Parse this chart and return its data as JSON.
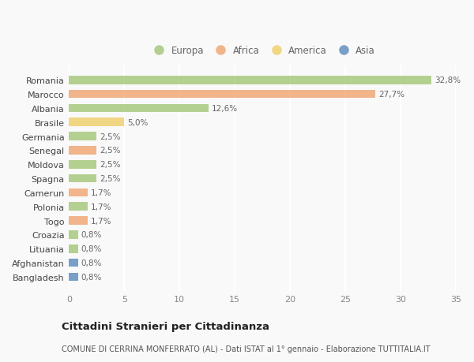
{
  "countries": [
    "Romania",
    "Marocco",
    "Albania",
    "Brasile",
    "Germania",
    "Senegal",
    "Moldova",
    "Spagna",
    "Camerun",
    "Polonia",
    "Togo",
    "Croazia",
    "Lituania",
    "Afghanistan",
    "Bangladesh"
  ],
  "values": [
    32.8,
    27.7,
    12.6,
    5.0,
    2.5,
    2.5,
    2.5,
    2.5,
    1.7,
    1.7,
    1.7,
    0.8,
    0.8,
    0.8,
    0.8
  ],
  "labels": [
    "32,8%",
    "27,7%",
    "12,6%",
    "5,0%",
    "2,5%",
    "2,5%",
    "2,5%",
    "2,5%",
    "1,7%",
    "1,7%",
    "1,7%",
    "0,8%",
    "0,8%",
    "0,8%",
    "0,8%"
  ],
  "continent": [
    "Europa",
    "Africa",
    "Europa",
    "America",
    "Europa",
    "Africa",
    "Europa",
    "Europa",
    "Africa",
    "Europa",
    "Africa",
    "Europa",
    "Europa",
    "Asia",
    "Asia"
  ],
  "colors": {
    "Europa": "#a8c97f",
    "Africa": "#f0a878",
    "America": "#f0d070",
    "Asia": "#6090c0"
  },
  "xlim": [
    0,
    35
  ],
  "xticks": [
    0,
    5,
    10,
    15,
    20,
    25,
    30,
    35
  ],
  "title": "Cittadini Stranieri per Cittadinanza",
  "subtitle": "COMUNE DI CERRINA MONFERRATO (AL) - Dati ISTAT al 1° gennaio - Elaborazione TUTTITALIA.IT",
  "background_color": "#f9f9f9",
  "grid_color": "#ffffff",
  "bar_height": 0.6,
  "legend_order": [
    "Europa",
    "Africa",
    "America",
    "Asia"
  ]
}
